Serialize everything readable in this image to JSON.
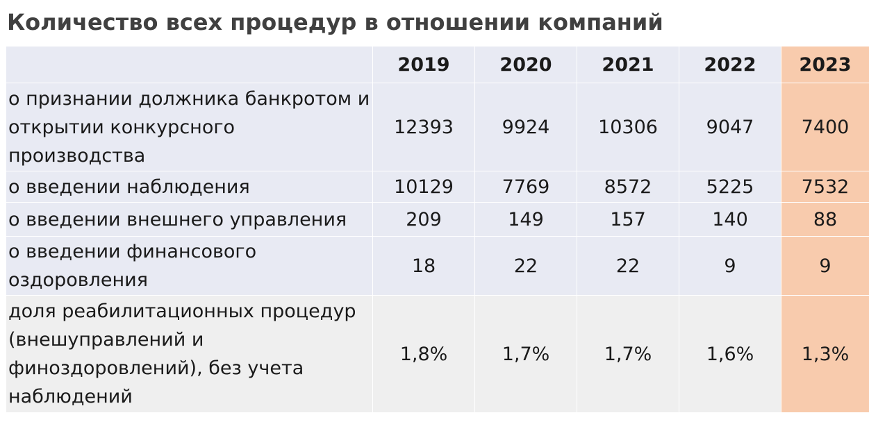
{
  "title": "Количество всех процедур в отношении компаний",
  "table": {
    "years": [
      "2019",
      "2020",
      "2021",
      "2022",
      "2023"
    ],
    "rows": [
      {
        "label": "о признании должника банкротом и открытии конкурсного производства",
        "values": [
          "12393",
          "9924",
          "10306",
          "9047",
          "7400"
        ]
      },
      {
        "label": "о введении наблюдения",
        "values": [
          "10129",
          "7769",
          "8572",
          "5225",
          "7532"
        ]
      },
      {
        "label": "о введении внешнего управления",
        "values": [
          "209",
          "149",
          "157",
          "140",
          "88"
        ]
      },
      {
        "label": "о введении финансового оздоровления",
        "values": [
          "18",
          "22",
          "22",
          "9",
          "9"
        ]
      },
      {
        "label": "доля реабилитационных процедур (внешуправлений и финоздоровлений), без учета наблюдений",
        "values": [
          "1,8%",
          "1,7%",
          "1,7%",
          "1,6%",
          "1,3%"
        ]
      }
    ]
  },
  "colors": {
    "row_bg": "#e8eaf3",
    "last_row_bg": "#efefef",
    "highlight_col_bg": "#f8cbad",
    "title_color": "#404040"
  }
}
